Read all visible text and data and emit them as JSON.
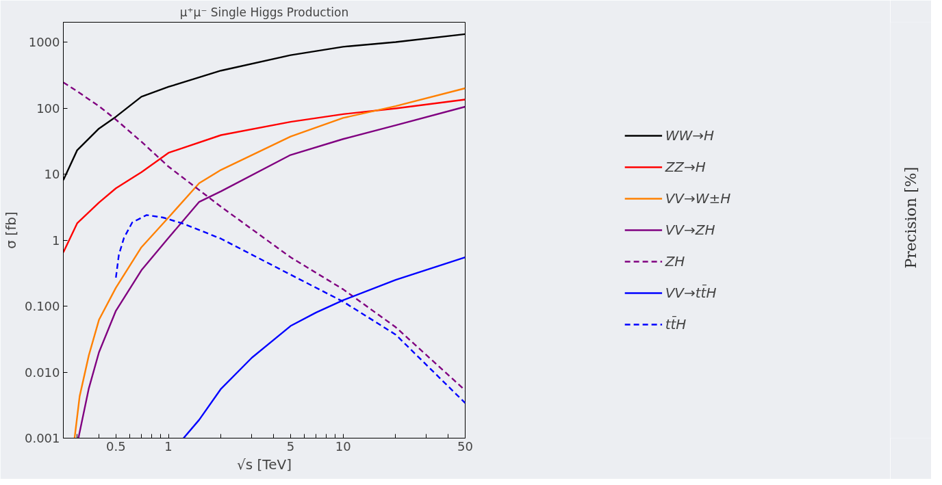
{
  "chart_data": {
    "type": "line",
    "title": "μ⁺μ⁻ Single Higgs Production",
    "xlabel": "√s [TeV]",
    "ylabel": "σ [fb]",
    "annotations": [
      "Precision [%]"
    ],
    "log": "xy",
    "grid": false,
    "legend": "right",
    "line_style": "solid",
    "xlim": [
      0.25,
      50
    ],
    "ylim": [
      0.001,
      2000
    ],
    "xticks": [
      {
        "value": 0.3,
        "label": null
      },
      {
        "value": 0.4,
        "label": null
      },
      0.5,
      {
        "value": 0.6,
        "label": null
      },
      {
        "value": 0.7,
        "label": null
      },
      {
        "value": 0.8,
        "label": null
      },
      {
        "value": 0.9,
        "label": null
      },
      1,
      {
        "value": 2,
        "label": null
      },
      {
        "value": 3,
        "label": null
      },
      {
        "value": 4,
        "label": null
      },
      5,
      {
        "value": 6,
        "label": null
      },
      {
        "value": 7,
        "label": null
      },
      {
        "value": 8,
        "label": null
      },
      {
        "value": 9,
        "label": null
      },
      10,
      {
        "value": 20,
        "label": null
      },
      {
        "value": 30,
        "label": null
      },
      {
        "value": 40,
        "label": null
      },
      50
    ],
    "yticks": [
      {
        "value": 0.001,
        "label": "0.001"
      },
      {
        "value": 0.01,
        "label": "0.010"
      },
      {
        "value": 0.1,
        "label": "0.100"
      },
      1,
      10,
      100,
      1000
    ],
    "series": [
      {
        "name": "WW→H",
        "color": "#000000",
        "x": [
          0.25,
          0.3,
          0.4,
          0.5,
          0.7,
          1,
          2,
          5,
          10,
          20,
          50
        ],
        "values": [
          8.1,
          23,
          49,
          74,
          149,
          210,
          370,
          635,
          850,
          1000,
          1320
        ]
      },
      {
        "name": "ZZ→H",
        "color": "#ff0000",
        "x": [
          0.25,
          0.3,
          0.4,
          0.5,
          0.7,
          1,
          2,
          5,
          10,
          20,
          50
        ],
        "values": [
          0.65,
          1.8,
          3.7,
          6.1,
          10.7,
          21,
          39,
          62,
          81,
          99,
          135
        ]
      },
      {
        "name": "VV→W±H",
        "color": "#ff8000",
        "x": [
          0.29,
          0.31,
          0.35,
          0.4,
          0.5,
          0.7,
          1,
          1.5,
          2,
          5,
          10,
          20,
          50
        ],
        "values": [
          0.001,
          0.0043,
          0.018,
          0.062,
          0.19,
          0.78,
          2.2,
          7.3,
          11.6,
          37,
          71,
          107,
          200
        ]
      },
      {
        "name": "VV→ZH",
        "color": "#800080",
        "x": [
          0.305,
          0.35,
          0.4,
          0.5,
          0.7,
          1,
          1.5,
          2,
          5,
          10,
          20,
          50
        ],
        "values": [
          0.001,
          0.0057,
          0.02,
          0.085,
          0.35,
          1.08,
          3.8,
          5.5,
          19.5,
          34,
          55,
          105
        ]
      },
      {
        "name": "ZH",
        "color": "#800080",
        "line_style": "dashed",
        "x": [
          0.25,
          0.3,
          0.4,
          0.5,
          0.7,
          1,
          2,
          5,
          10,
          20,
          50
        ],
        "values": [
          245,
          180,
          107,
          67,
          31,
          13,
          3.2,
          0.55,
          0.18,
          0.048,
          0.0053
        ]
      },
      {
        "name": "VV→tt̄H",
        "color": "#0000ff",
        "x": [
          1.22,
          1.5,
          2,
          3,
          5,
          7,
          10,
          20,
          50
        ],
        "values": [
          0.001,
          0.0019,
          0.0056,
          0.0165,
          0.05,
          0.08,
          0.123,
          0.25,
          0.55
        ]
      },
      {
        "name": "tt̄H",
        "color": "#0000ff",
        "line_style": "dashed",
        "x": [
          0.5,
          0.52,
          0.556,
          0.62,
          0.75,
          0.93,
          1.22,
          2,
          5,
          10,
          20,
          50
        ],
        "values": [
          0.27,
          0.6,
          1.08,
          1.85,
          2.4,
          2.2,
          1.77,
          1.05,
          0.3,
          0.117,
          0.037,
          0.0034
        ]
      }
    ]
  }
}
